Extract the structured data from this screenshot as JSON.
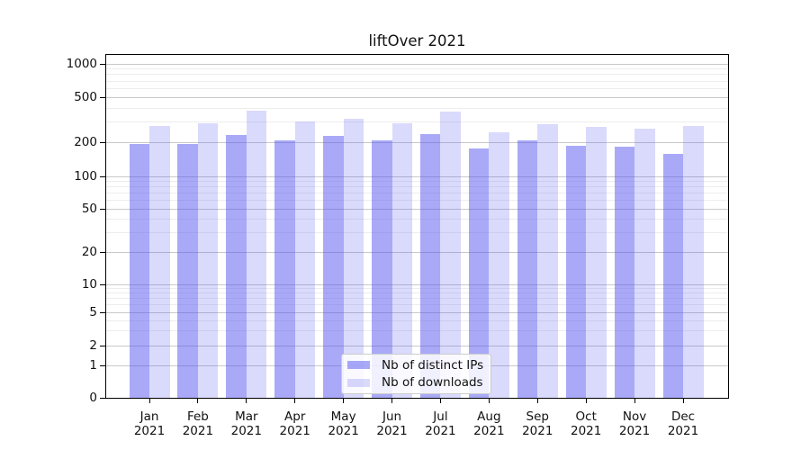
{
  "title": "liftOver 2021",
  "chart_data": {
    "type": "bar",
    "title": "liftOver 2021",
    "categories": [
      "Jan 2021",
      "Feb 2021",
      "Mar 2021",
      "Apr 2021",
      "May 2021",
      "Jun 2021",
      "Jul 2021",
      "Aug 2021",
      "Sep 2021",
      "Oct 2021",
      "Nov 2021",
      "Dec 2021"
    ],
    "series": [
      {
        "name": "Nb of distinct IPs",
        "color": "rgba(80,80,240,0.49)",
        "values": [
          192,
          192,
          230,
          208,
          227,
          207,
          236,
          176,
          207,
          186,
          184,
          157
        ]
      },
      {
        "name": "Nb of downloads",
        "color": "rgba(80,80,240,0.21)",
        "values": [
          278,
          292,
          378,
          305,
          322,
          292,
          375,
          245,
          289,
          273,
          264,
          278
        ]
      }
    ],
    "y_ticks": [
      0,
      1,
      2,
      5,
      10,
      20,
      50,
      100,
      200,
      500,
      1000
    ],
    "y_minor_gridlines": [
      3,
      4,
      6,
      7,
      8,
      9,
      30,
      40,
      60,
      70,
      80,
      90,
      300,
      400,
      600,
      700,
      800,
      900
    ],
    "y_scale": "log (zero-anchored)",
    "ylim": [
      0,
      1300
    ],
    "xlabel": "",
    "ylabel": "",
    "grid": true,
    "legend_position": "inside-bottom-center",
    "axis_color": "#000000",
    "grid_major_color": "#c9c9c9",
    "grid_minor_color": "#ededed",
    "background": "#ffffff"
  }
}
